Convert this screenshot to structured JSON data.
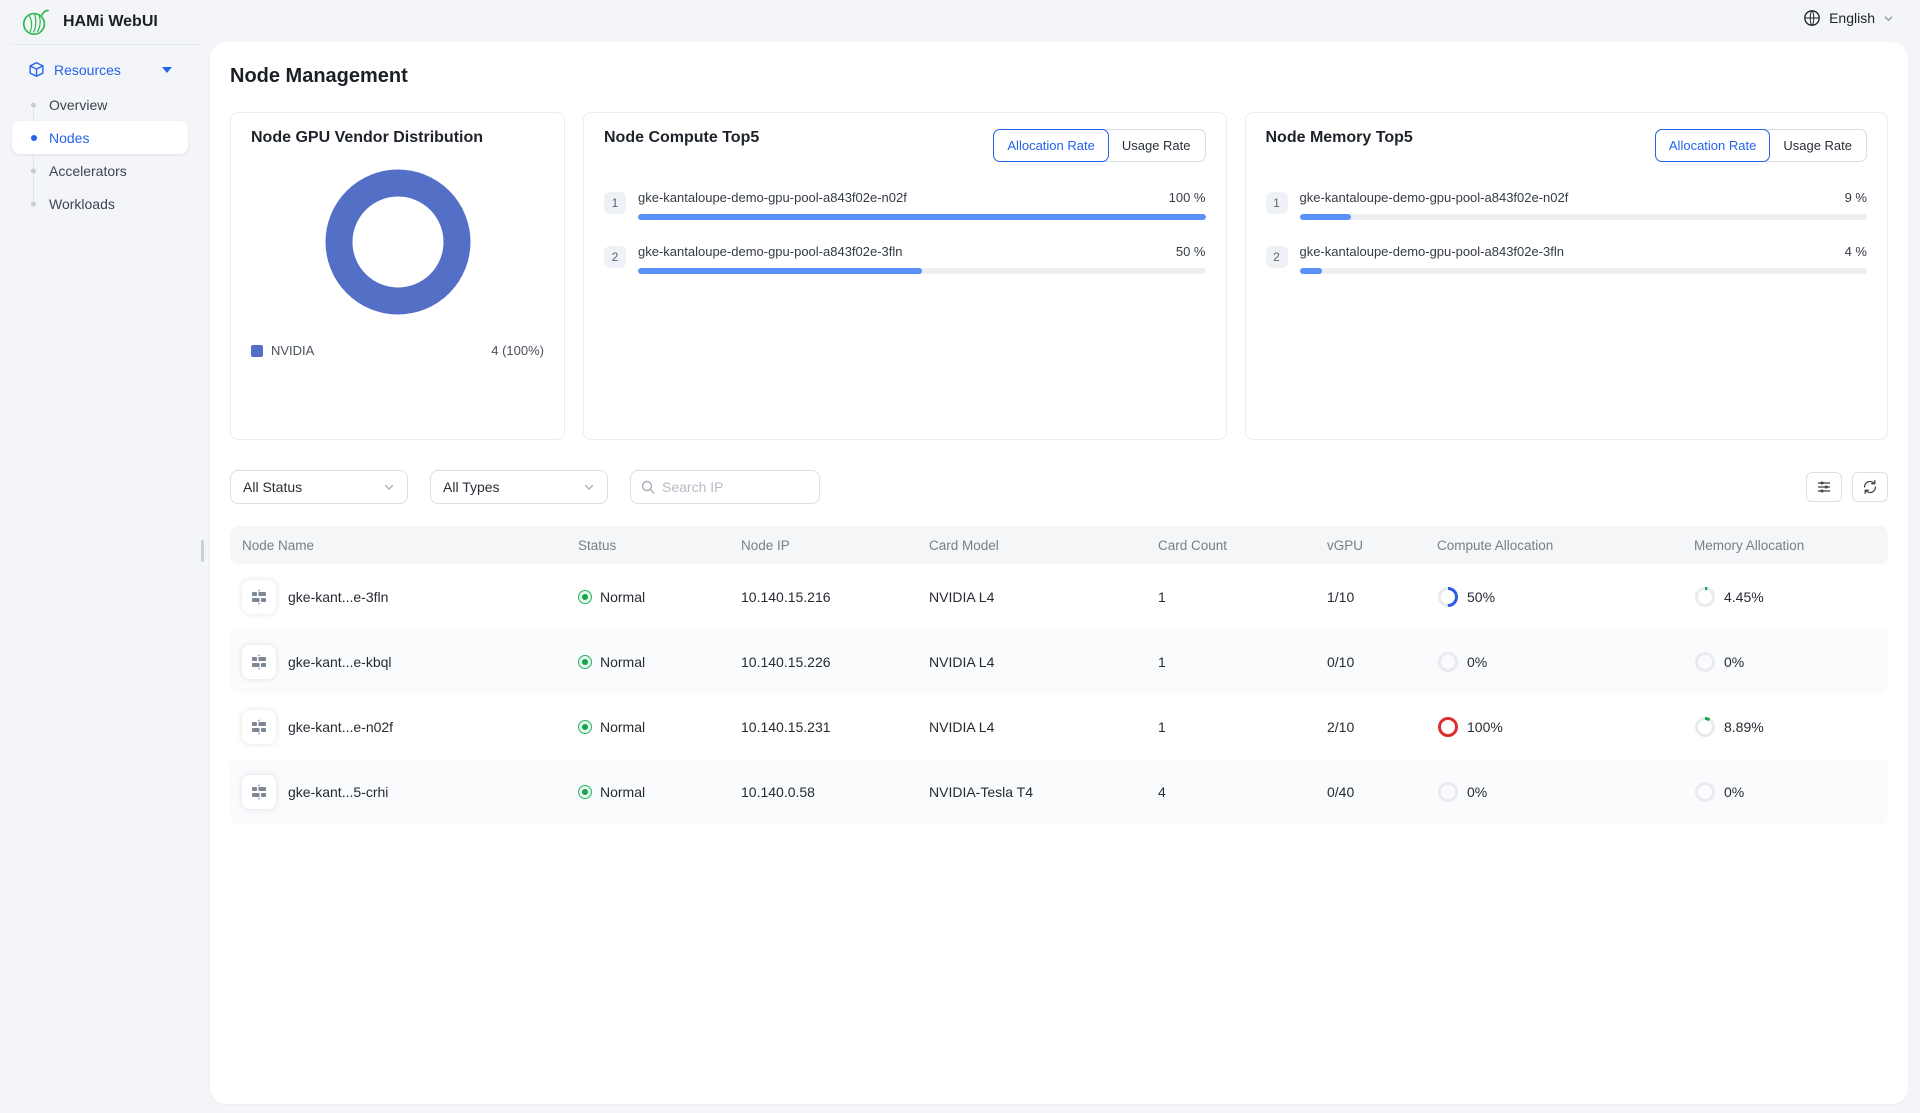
{
  "app": {
    "title": "HAMi WebUI",
    "language": "English"
  },
  "sidebar": {
    "section_label": "Resources",
    "items": [
      {
        "label": "Overview"
      },
      {
        "label": "Nodes"
      },
      {
        "label": "Accelerators"
      },
      {
        "label": "Workloads"
      }
    ]
  },
  "page": {
    "title": "Node Management"
  },
  "cards": {
    "vendor": {
      "title": "Node GPU Vendor Distribution",
      "donut": {
        "percent": 100,
        "color": "#5470c6"
      },
      "legend": {
        "label": "NVIDIA",
        "value": "4 (100%)",
        "color": "#5470c6"
      }
    },
    "compute": {
      "title": "Node Compute Top5",
      "tabs": [
        "Allocation Rate",
        "Usage Rate"
      ],
      "active_tab": "Allocation Rate",
      "items": [
        {
          "rank": "1",
          "name": "gke-kantaloupe-demo-gpu-pool-a843f02e-n02f",
          "value": "100 %",
          "percent": 100,
          "bar_color": "#5b8ff9"
        },
        {
          "rank": "2",
          "name": "gke-kantaloupe-demo-gpu-pool-a843f02e-3fln",
          "value": "50 %",
          "percent": 50,
          "bar_color": "#5b8ff9"
        }
      ]
    },
    "memory": {
      "title": "Node Memory Top5",
      "tabs": [
        "Allocation Rate",
        "Usage Rate"
      ],
      "active_tab": "Allocation Rate",
      "items": [
        {
          "rank": "1",
          "name": "gke-kantaloupe-demo-gpu-pool-a843f02e-n02f",
          "value": "9 %",
          "percent": 9,
          "bar_color": "#5b8ff9"
        },
        {
          "rank": "2",
          "name": "gke-kantaloupe-demo-gpu-pool-a843f02e-3fln",
          "value": "4 %",
          "percent": 4,
          "bar_color": "#5b8ff9"
        }
      ]
    }
  },
  "filters": {
    "status": "All Status",
    "type": "All Types",
    "search_placeholder": "Search IP"
  },
  "table": {
    "columns": [
      "Node Name",
      "Status",
      "Node IP",
      "Card Model",
      "Card Count",
      "vGPU",
      "Compute Allocation",
      "Memory Allocation"
    ],
    "rows": [
      {
        "name": "gke-kant...e-3fln",
        "status": "Normal",
        "ip": "10.140.15.216",
        "model": "NVIDIA L4",
        "count": "1",
        "vgpu": "1/10",
        "compute": {
          "label": "50%",
          "percent": 50,
          "color": "#2b5ce5"
        },
        "memory": {
          "label": "4.45%",
          "percent": 4.45,
          "color": "#1aa34a"
        }
      },
      {
        "name": "gke-kant...e-kbql",
        "status": "Normal",
        "ip": "10.140.15.226",
        "model": "NVIDIA L4",
        "count": "1",
        "vgpu": "0/10",
        "compute": {
          "label": "0%",
          "percent": 0,
          "color": "#e9ebef"
        },
        "memory": {
          "label": "0%",
          "percent": 0,
          "color": "#e9ebef"
        }
      },
      {
        "name": "gke-kant...e-n02f",
        "status": "Normal",
        "ip": "10.140.15.231",
        "model": "NVIDIA L4",
        "count": "1",
        "vgpu": "2/10",
        "compute": {
          "label": "100%",
          "percent": 100,
          "color": "#dc2f2f"
        },
        "memory": {
          "label": "8.89%",
          "percent": 8.89,
          "color": "#1aa34a"
        }
      },
      {
        "name": "gke-kant...5-crhi",
        "status": "Normal",
        "ip": "10.140.0.58",
        "model": "NVIDIA-Tesla T4",
        "count": "4",
        "vgpu": "0/40",
        "compute": {
          "label": "0%",
          "percent": 0,
          "color": "#e9ebef"
        },
        "memory": {
          "label": "0%",
          "percent": 0,
          "color": "#e9ebef"
        }
      }
    ]
  }
}
